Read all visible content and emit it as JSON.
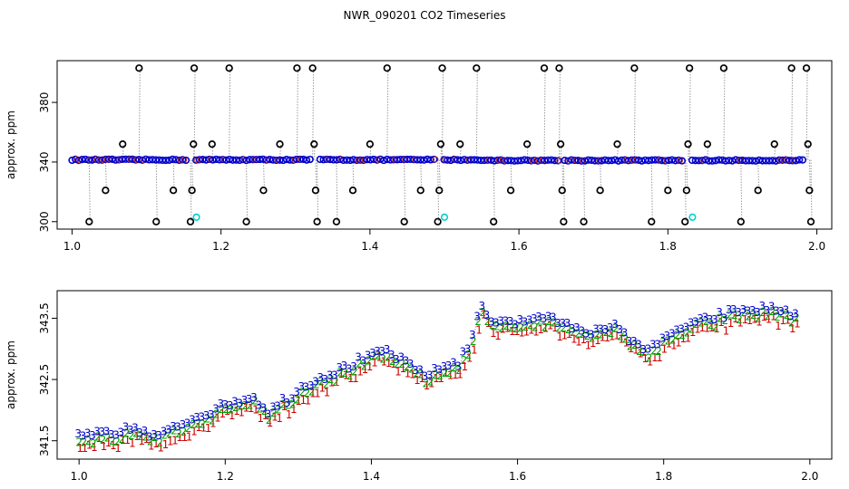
{
  "title": "NWR_090201  CO2 Timeseries",
  "chart_data": [
    {
      "type": "scatter",
      "ylabel": "approx. ppm",
      "xlim": [
        0.98,
        2.02
      ],
      "ylim": [
        295,
        408
      ],
      "x_ticks": [
        1.0,
        1.2,
        1.4,
        1.6,
        1.8,
        2.0
      ],
      "x_tick_labels": [
        "1.0",
        "1.2",
        "1.4",
        "1.6",
        "1.8",
        "2.0"
      ],
      "y_ticks": [
        300,
        340,
        380
      ],
      "y_tick_labels": [
        "300",
        "340",
        "380"
      ],
      "colors": {
        "baseline": "#0000cc",
        "spike": "#000000",
        "flag": "#00d0d0",
        "line": "#9a9a9a",
        "accent": "#c8351a"
      },
      "baseline_value": 341.5,
      "spike_values": [
        300,
        321,
        352,
        403
      ],
      "spikes": [
        {
          "x": 1.023,
          "y": 300
        },
        {
          "x": 1.045,
          "y": 321
        },
        {
          "x": 1.068,
          "y": 352
        },
        {
          "x": 1.09,
          "y": 403
        },
        {
          "x": 1.113,
          "y": 300
        },
        {
          "x": 1.136,
          "y": 321
        },
        {
          "x": 1.159,
          "y": 300
        },
        {
          "x": 1.161,
          "y": 321
        },
        {
          "x": 1.163,
          "y": 352
        },
        {
          "x": 1.164,
          "y": 403
        },
        {
          "x": 1.188,
          "y": 352
        },
        {
          "x": 1.211,
          "y": 403
        },
        {
          "x": 1.234,
          "y": 300
        },
        {
          "x": 1.257,
          "y": 321
        },
        {
          "x": 1.279,
          "y": 352
        },
        {
          "x": 1.302,
          "y": 403
        },
        {
          "x": 1.323,
          "y": 403
        },
        {
          "x": 1.325,
          "y": 352
        },
        {
          "x": 1.327,
          "y": 321
        },
        {
          "x": 1.329,
          "y": 300
        },
        {
          "x": 1.355,
          "y": 300
        },
        {
          "x": 1.377,
          "y": 321
        },
        {
          "x": 1.4,
          "y": 352
        },
        {
          "x": 1.423,
          "y": 403
        },
        {
          "x": 1.446,
          "y": 300
        },
        {
          "x": 1.468,
          "y": 321
        },
        {
          "x": 1.491,
          "y": 300
        },
        {
          "x": 1.493,
          "y": 321
        },
        {
          "x": 1.495,
          "y": 352
        },
        {
          "x": 1.497,
          "y": 403
        },
        {
          "x": 1.521,
          "y": 352
        },
        {
          "x": 1.543,
          "y": 403
        },
        {
          "x": 1.566,
          "y": 300
        },
        {
          "x": 1.589,
          "y": 321
        },
        {
          "x": 1.611,
          "y": 352
        },
        {
          "x": 1.634,
          "y": 403
        },
        {
          "x": 1.654,
          "y": 403
        },
        {
          "x": 1.656,
          "y": 352
        },
        {
          "x": 1.658,
          "y": 321
        },
        {
          "x": 1.66,
          "y": 300
        },
        {
          "x": 1.687,
          "y": 300
        },
        {
          "x": 1.709,
          "y": 321
        },
        {
          "x": 1.732,
          "y": 352
        },
        {
          "x": 1.755,
          "y": 403
        },
        {
          "x": 1.778,
          "y": 300
        },
        {
          "x": 1.8,
          "y": 321
        },
        {
          "x": 1.823,
          "y": 300
        },
        {
          "x": 1.825,
          "y": 321
        },
        {
          "x": 1.827,
          "y": 352
        },
        {
          "x": 1.829,
          "y": 403
        },
        {
          "x": 1.853,
          "y": 352
        },
        {
          "x": 1.875,
          "y": 403
        },
        {
          "x": 1.898,
          "y": 300
        },
        {
          "x": 1.921,
          "y": 321
        },
        {
          "x": 1.943,
          "y": 352
        },
        {
          "x": 1.966,
          "y": 403
        },
        {
          "x": 1.986,
          "y": 403
        },
        {
          "x": 1.988,
          "y": 352
        },
        {
          "x": 1.99,
          "y": 321
        },
        {
          "x": 1.992,
          "y": 300
        }
      ],
      "flagged": [
        {
          "x": 1.167,
          "y": 303
        },
        {
          "x": 1.5,
          "y": 303
        },
        {
          "x": 1.833,
          "y": 303
        }
      ]
    },
    {
      "type": "scatter",
      "ylabel": "approx. ppm",
      "xlim": [
        0.97,
        2.03
      ],
      "ylim": [
        341.2,
        343.95
      ],
      "x_ticks": [
        1.0,
        1.2,
        1.4,
        1.6,
        1.8,
        2.0
      ],
      "x_tick_labels": [
        "1.0",
        "1.2",
        "1.4",
        "1.6",
        "1.8",
        "2.0"
      ],
      "y_ticks": [
        341.5,
        342.5,
        343.5
      ],
      "y_tick_labels": [
        "341.5",
        "342.5",
        "343.5"
      ],
      "markers": [
        "1",
        "2",
        "3"
      ],
      "colors": {
        "1": "#cc0000",
        "2": "#00a000",
        "3": "#0000cc",
        "line": "#9a9a9a"
      },
      "anchors_x": [
        1.0,
        1.03,
        1.05,
        1.08,
        1.1,
        1.12,
        1.15,
        1.18,
        1.21,
        1.24,
        1.26,
        1.29,
        1.32,
        1.35,
        1.38,
        1.4,
        1.42,
        1.44,
        1.46,
        1.48,
        1.5,
        1.52,
        1.54,
        1.55,
        1.56,
        1.58,
        1.61,
        1.63,
        1.66,
        1.69,
        1.71,
        1.74,
        1.76,
        1.78,
        1.8,
        1.83,
        1.86,
        1.89,
        1.91,
        1.94,
        1.96,
        1.99
      ],
      "anchors_y": [
        341.55,
        341.6,
        341.55,
        341.7,
        341.55,
        341.6,
        341.8,
        341.95,
        342.1,
        342.2,
        341.95,
        342.2,
        342.45,
        342.6,
        342.75,
        342.85,
        342.95,
        342.8,
        342.65,
        342.55,
        342.7,
        342.75,
        343.15,
        343.75,
        343.45,
        343.45,
        343.4,
        343.5,
        343.4,
        343.3,
        343.25,
        343.35,
        343.05,
        343.0,
        343.1,
        343.35,
        343.45,
        343.55,
        343.6,
        343.65,
        343.6,
        343.55
      ]
    }
  ]
}
